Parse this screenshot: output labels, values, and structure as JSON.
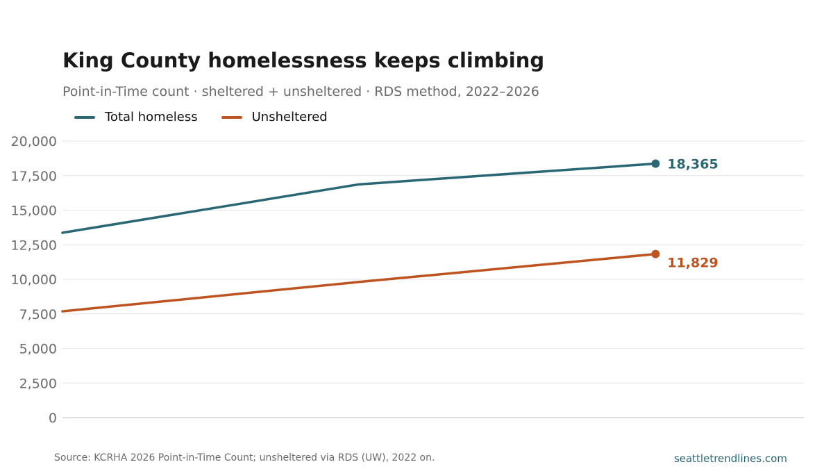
{
  "header": {
    "title": "King County homelessness keeps climbing",
    "subtitle": "Point-in-Time count · sheltered + unsheltered · RDS method, 2022–2026"
  },
  "footer": {
    "source": "Source: KCRHA 2026 Point-in-Time Count; unsheltered via RDS (UW), 2022 on.",
    "site": "seattletrendlines.com"
  },
  "colors": {
    "total": "#2a6775",
    "unsheltered": "#bf5320",
    "grid": "#e6e6e6",
    "tick": "#6b6b6b"
  },
  "chart_data": {
    "type": "line",
    "x": [
      2020,
      2022,
      2024
    ],
    "xlim": [
      2020,
      2025
    ],
    "ylim": [
      0,
      20000
    ],
    "yticks": [
      0,
      2500,
      5000,
      7500,
      10000,
      12500,
      15000,
      17500,
      20000
    ],
    "ytick_labels": [
      "0",
      "2,500",
      "5,000",
      "7,500",
      "10,000",
      "12,500",
      "15,000",
      "17,500",
      "20,000"
    ],
    "grid": true,
    "legend": "top-left",
    "series": [
      {
        "name": "Total homeless",
        "values": [
          13368,
          16868,
          18365
        ],
        "end_label": "18,365"
      },
      {
        "name": "Unsheltered",
        "values": [
          7685,
          9810,
          11829
        ],
        "end_label": "11,829"
      }
    ]
  }
}
